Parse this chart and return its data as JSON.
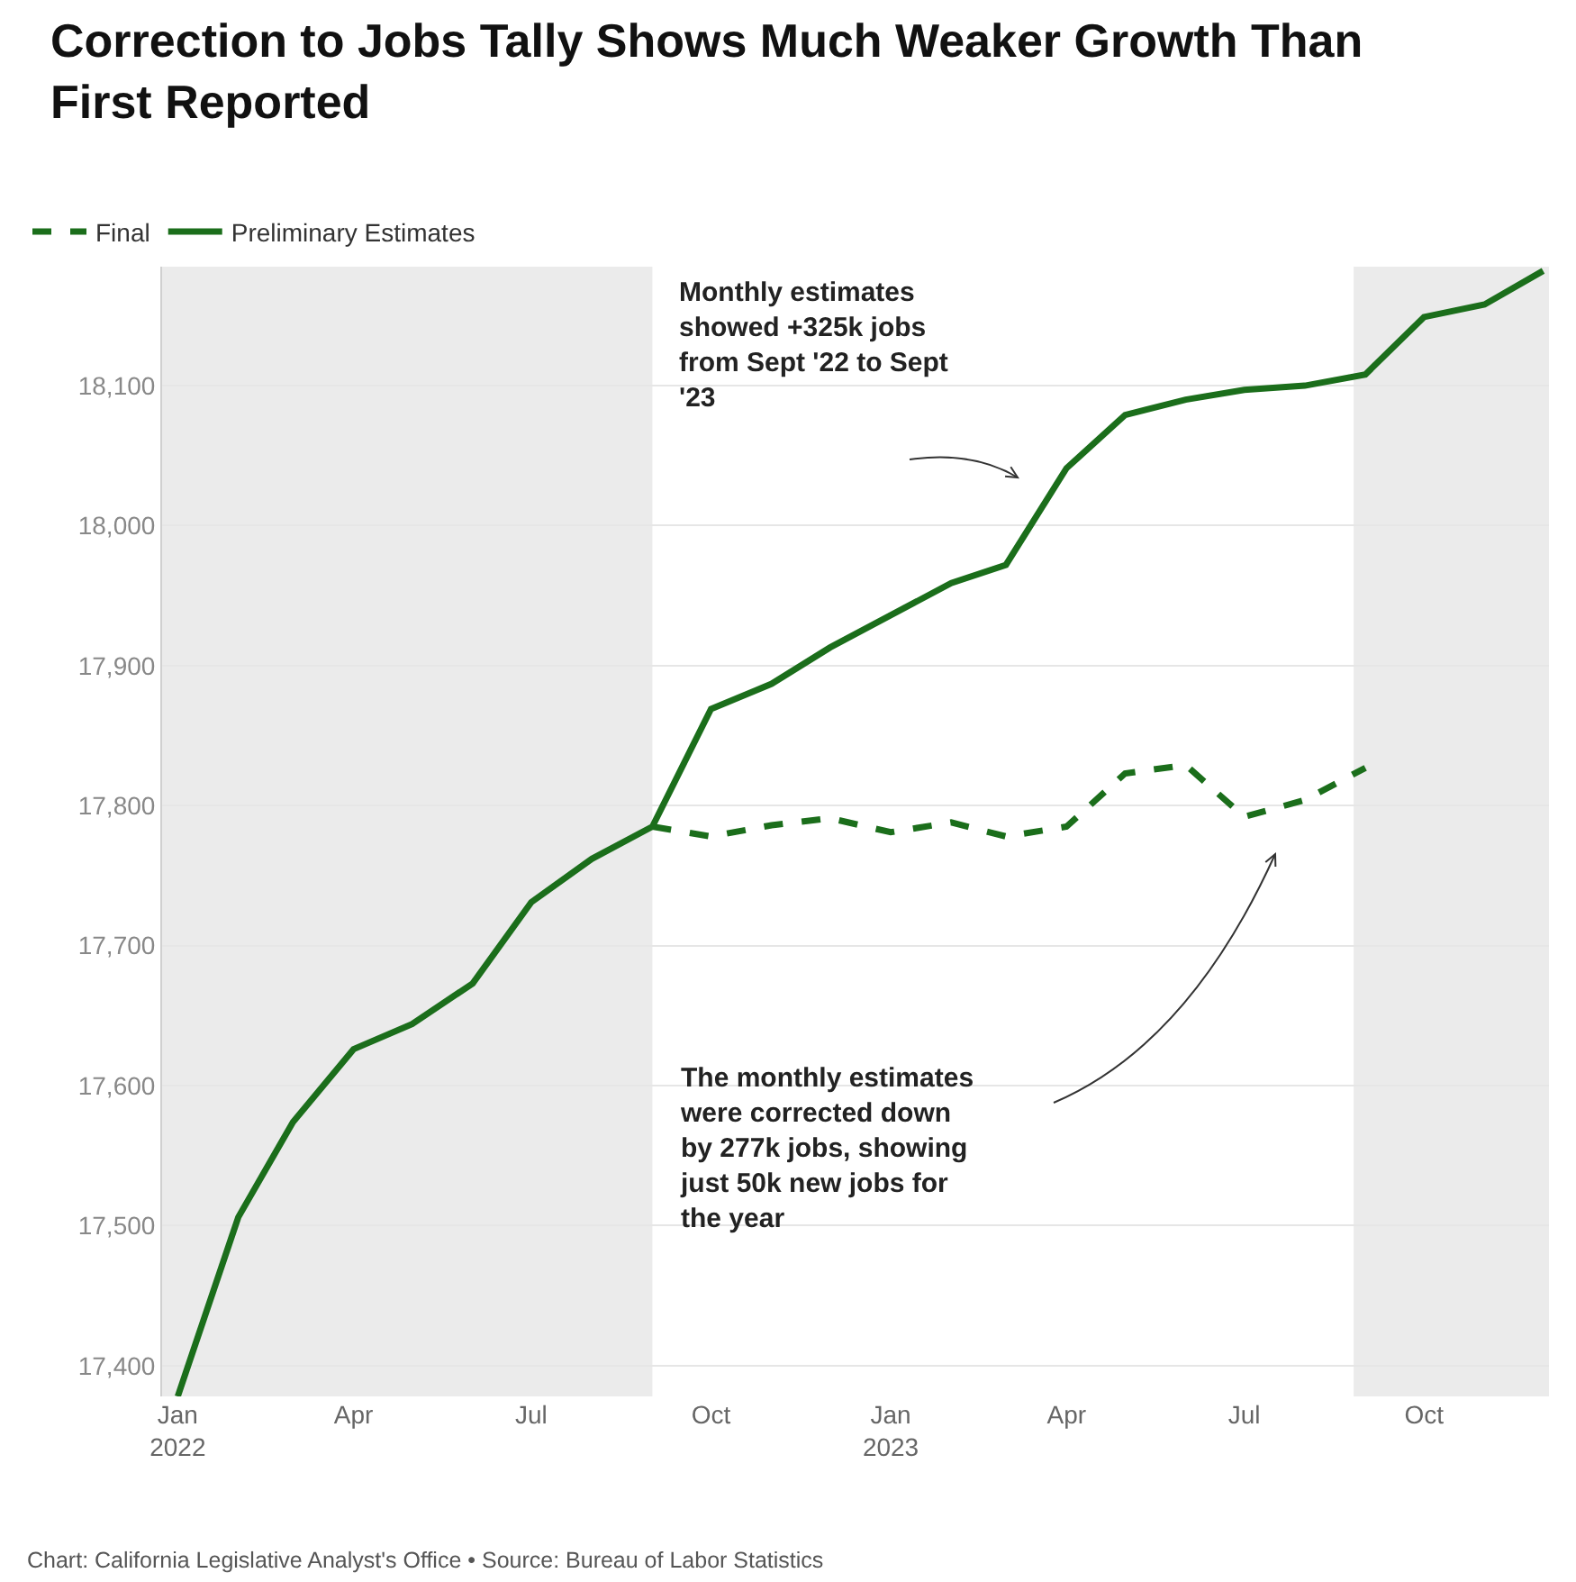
{
  "chart_data": {
    "type": "line",
    "title": "Correction to Jobs Tally Shows Much Weaker Growth Than First Reported",
    "x": [
      "2022-01",
      "2022-02",
      "2022-03",
      "2022-04",
      "2022-05",
      "2022-06",
      "2022-07",
      "2022-08",
      "2022-09",
      "2022-10",
      "2022-11",
      "2022-12",
      "2023-01",
      "2023-02",
      "2023-03",
      "2023-04",
      "2023-05",
      "2023-06",
      "2023-07",
      "2023-08",
      "2023-09",
      "2023-10",
      "2023-11",
      "2023-12"
    ],
    "series": [
      {
        "name": "Final",
        "color": "#1b6e1b",
        "line_style": "dashed",
        "x": [
          "2022-09",
          "2022-10",
          "2022-11",
          "2022-12",
          "2023-01",
          "2023-02",
          "2023-03",
          "2023-04",
          "2023-05",
          "2023-06",
          "2023-07",
          "2023-08",
          "2023-09"
        ],
        "values": [
          17785,
          17778,
          17786,
          17791,
          17781,
          17788,
          17778,
          17785,
          17823,
          17829,
          17792,
          17804,
          17827
        ]
      },
      {
        "name": "Preliminary Estimates",
        "color": "#1b6e1b",
        "line_style": "solid",
        "values": [
          17378,
          17506,
          17574,
          17626,
          17644,
          17673,
          17731,
          17762,
          17785,
          17869,
          17887,
          17913,
          17936,
          17959,
          17972,
          18041,
          18079,
          18090,
          18097,
          18100,
          18108,
          18149,
          18158,
          18182
        ]
      }
    ],
    "xlim": [
      "2021-12-24",
      "2023-12-04"
    ],
    "xticks": [
      {
        "value": "2022-01",
        "label": "Jan\n2022"
      },
      {
        "value": "2022-04",
        "label": "Apr"
      },
      {
        "value": "2022-07",
        "label": "Jul"
      },
      {
        "value": "2022-10",
        "label": "Oct"
      },
      {
        "value": "2023-01",
        "label": "Jan\n2023"
      },
      {
        "value": "2023-04",
        "label": "Apr"
      },
      {
        "value": "2023-07",
        "label": "Jul"
      },
      {
        "value": "2023-10",
        "label": "Oct"
      }
    ],
    "ylim": [
      17378,
      18185
    ],
    "yticks": [
      {
        "value": 17400,
        "label": "17,400"
      },
      {
        "value": 17500,
        "label": "17,500"
      },
      {
        "value": 17600,
        "label": "17,600"
      },
      {
        "value": 17700,
        "label": "17,700"
      },
      {
        "value": 17800,
        "label": "17,800"
      },
      {
        "value": 17900,
        "label": "17,900"
      },
      {
        "value": 18000,
        "label": "18,000"
      },
      {
        "value": 18100,
        "label": "18,100"
      }
    ],
    "bands": [
      {
        "axis": "x",
        "from": "2021-12-24",
        "to": "2022-09-01",
        "color": "#ebebeb"
      },
      {
        "axis": "x",
        "from": "2023-08-26",
        "to": "2023-12-04",
        "color": "#ebebeb"
      }
    ],
    "annotations": [
      "Monthly estimates\nshowed +325k jobs\nfrom Sept '22 to Sept\n'23",
      "The monthly estimates\nwere corrected down\nby 277k jobs, showing\njust 50k new jobs for\nthe year",
      "Chart: California Legislative Analyst's Office • Source: Bureau of Labor Statistics"
    ],
    "grid": "y",
    "legend": "top left",
    "marker": "none"
  }
}
